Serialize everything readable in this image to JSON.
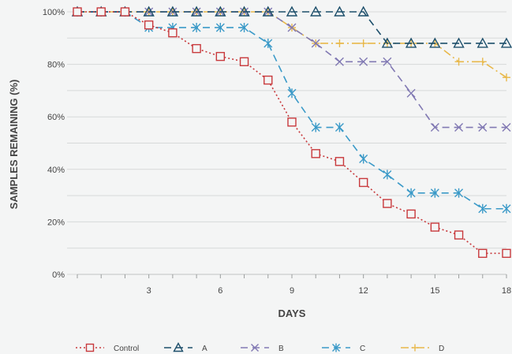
{
  "chart_data": {
    "type": "line",
    "xlabel": "DAYS",
    "ylabel": "SAMPLES REMAINING (%)",
    "xlim": [
      0,
      18
    ],
    "ylim": [
      0,
      100
    ],
    "x_ticks": [
      3,
      6,
      9,
      12,
      15,
      18
    ],
    "y_ticks": [
      0,
      20,
      40,
      60,
      80,
      100
    ],
    "y_tick_labels": [
      "0%",
      "20%",
      "40%",
      "60%",
      "80%",
      "100%"
    ],
    "grid": "horizontal",
    "legend_position": "bottom",
    "series": [
      {
        "name": "Control",
        "color": "#c8393c",
        "marker": "square",
        "dash": "dotted",
        "x": [
          0,
          1,
          2,
          3,
          4,
          5,
          6,
          7,
          8,
          9,
          10,
          11,
          12,
          13,
          14,
          15,
          16,
          17,
          18
        ],
        "y": [
          100,
          100,
          100,
          95,
          92,
          86,
          83,
          81,
          74,
          58,
          46,
          43,
          35,
          27,
          23,
          18,
          15,
          8,
          8
        ]
      },
      {
        "name": "A",
        "color": "#1d4f6b",
        "marker": "triangle",
        "dash": "dashed",
        "x": [
          0,
          1,
          2,
          3,
          4,
          5,
          6,
          7,
          8,
          9,
          10,
          11,
          12,
          13,
          14,
          15,
          16,
          17,
          18
        ],
        "y": [
          100,
          100,
          100,
          100,
          100,
          100,
          100,
          100,
          100,
          100,
          100,
          100,
          100,
          88,
          88,
          88,
          88,
          88,
          88
        ]
      },
      {
        "name": "B",
        "color": "#8179b3",
        "marker": "x",
        "dash": "dashed",
        "x": [
          0,
          1,
          2,
          3,
          4,
          5,
          6,
          7,
          8,
          9,
          10,
          11,
          12,
          13,
          14,
          15,
          16,
          17,
          18
        ],
        "y": [
          100,
          100,
          100,
          100,
          100,
          100,
          100,
          100,
          100,
          94,
          88,
          81,
          81,
          81,
          69,
          56,
          56,
          56,
          56
        ]
      },
      {
        "name": "C",
        "color": "#3b9ac8",
        "marker": "star",
        "dash": "dashed",
        "x": [
          0,
          1,
          2,
          3,
          4,
          5,
          6,
          7,
          8,
          9,
          10,
          11,
          12,
          13,
          14,
          15,
          16,
          17,
          18
        ],
        "y": [
          100,
          100,
          100,
          94,
          94,
          94,
          94,
          94,
          88,
          69,
          56,
          56,
          44,
          38,
          31,
          31,
          31,
          25,
          25
        ]
      },
      {
        "name": "D",
        "color": "#e8b84a",
        "marker": "plus",
        "dash": "dashdot",
        "x": [
          0,
          1,
          2,
          3,
          4,
          5,
          6,
          7,
          8,
          9,
          10,
          11,
          12,
          13,
          14,
          15,
          16,
          17,
          18
        ],
        "y": [
          100,
          100,
          100,
          100,
          100,
          100,
          100,
          100,
          100,
          94,
          88,
          88,
          88,
          88,
          88,
          88,
          81,
          81,
          75
        ]
      }
    ]
  }
}
